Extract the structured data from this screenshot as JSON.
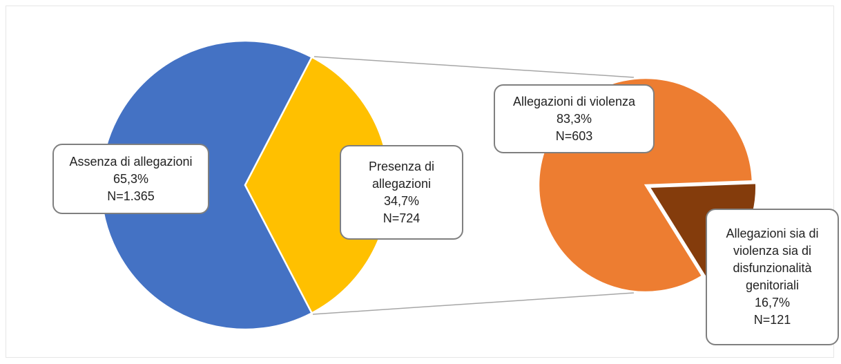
{
  "chart_data": [
    {
      "type": "pie",
      "categories": [
        "Assenza di allegazioni",
        "Presenza di allegazioni"
      ],
      "values": [
        65.3,
        34.7
      ],
      "value_labels": [
        "65,3%",
        "34,7%"
      ],
      "counts": [
        1365,
        724
      ],
      "count_labels": [
        "N=1.365",
        "N=724"
      ],
      "colors": [
        "#4472c4",
        "#ffc000"
      ]
    },
    {
      "type": "pie",
      "categories": [
        "Allegazioni di violenza",
        "Allegazioni sia di violenza sia di disfunzionalità genitoriali"
      ],
      "values": [
        83.3,
        16.7
      ],
      "value_labels": [
        "83,3%",
        "16,7%"
      ],
      "counts": [
        603,
        121
      ],
      "count_labels": [
        "N=603",
        "N=121"
      ],
      "colors": [
        "#ed7d31",
        "#843c0c"
      ]
    }
  ]
}
